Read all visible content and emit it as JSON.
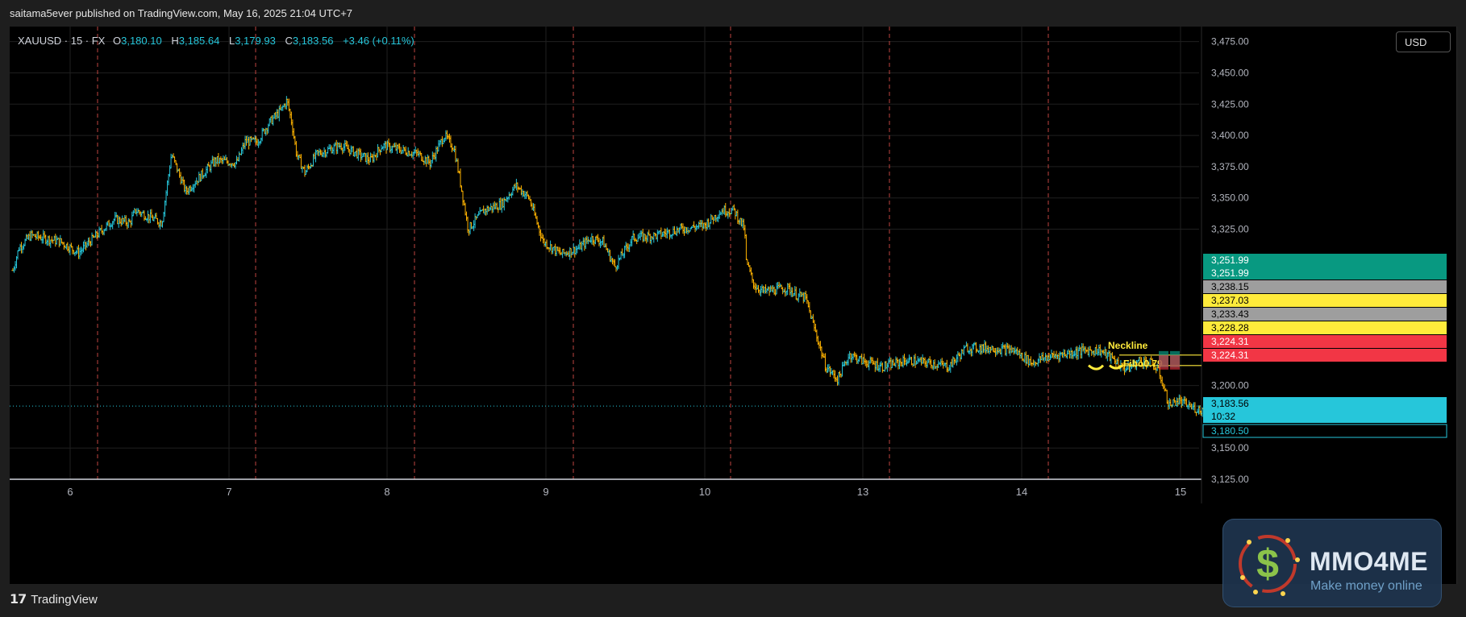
{
  "publish_text": "saitama5ever published on TradingView.com, May 16, 2025 21:04 UTC+7",
  "footer_brand": "TradingView",
  "currency": "USD",
  "legend": {
    "symbol": "XAUUSD · 15 · FX",
    "o_label": "O",
    "o": "3,180.10",
    "h_label": "H",
    "h": "3,185.64",
    "l_label": "L",
    "l": "3,179.93",
    "c_label": "C",
    "c": "3,183.56",
    "change": "+3.46 (+0.11%)"
  },
  "watermark": {
    "title": "MMO4ME",
    "subtitle": "Make money online"
  },
  "colors": {
    "up": "#26c6da",
    "down": "#ffb300",
    "session_line": "#e0524a",
    "annotation": "#ffeb3b",
    "grid": "#1f1f1f"
  },
  "chart_data": {
    "type": "candlestick",
    "symbol": "XAUUSD",
    "interval": "15",
    "ylim": [
      3125,
      3487
    ],
    "y_ticks": [
      "3,475.00",
      "3,450.00",
      "3,425.00",
      "3,400.00",
      "3,375.00",
      "3,350.00",
      "3,325.00",
      "3,200.00",
      "3,150.00",
      "3,125.00"
    ],
    "y_tick_values": [
      3475,
      3450,
      3425,
      3400,
      3375,
      3350,
      3325,
      3200,
      3150,
      3125
    ],
    "x_tick_labels": [
      "6",
      "7",
      "8",
      "9",
      "10",
      "13",
      "14",
      "15"
    ],
    "day_session_dividers": 7,
    "price_path": [
      [
        0,
        3292
      ],
      [
        0.05,
        3310
      ],
      [
        0.15,
        3320
      ],
      [
        0.4,
        3315
      ],
      [
        0.55,
        3306
      ],
      [
        0.7,
        3320
      ],
      [
        0.85,
        3333
      ],
      [
        0.98,
        3330
      ],
      [
        1.03,
        3340
      ],
      [
        1.25,
        3330
      ],
      [
        1.33,
        3385
      ],
      [
        1.45,
        3355
      ],
      [
        1.5,
        3360
      ],
      [
        1.6,
        3370
      ],
      [
        1.7,
        3380
      ],
      [
        1.88,
        3378
      ],
      [
        1.95,
        3395
      ],
      [
        2.05,
        3395
      ],
      [
        2.15,
        3410
      ],
      [
        2.25,
        3420
      ],
      [
        2.3,
        3428
      ],
      [
        2.34,
        3410
      ],
      [
        2.38,
        3385
      ],
      [
        2.45,
        3370
      ],
      [
        2.55,
        3385
      ],
      [
        2.75,
        3392
      ],
      [
        3.0,
        3380
      ],
      [
        3.1,
        3392
      ],
      [
        3.4,
        3385
      ],
      [
        3.5,
        3378
      ],
      [
        3.62,
        3400
      ],
      [
        3.7,
        3390
      ],
      [
        3.75,
        3365
      ],
      [
        3.82,
        3325
      ],
      [
        3.95,
        3340
      ],
      [
        4.1,
        3345
      ],
      [
        4.22,
        3360
      ],
      [
        4.33,
        3350
      ],
      [
        4.45,
        3315
      ],
      [
        4.6,
        3305
      ],
      [
        4.75,
        3310
      ],
      [
        4.85,
        3318
      ],
      [
        4.95,
        3315
      ],
      [
        5.05,
        3295
      ],
      [
        5.2,
        3318
      ],
      [
        5.4,
        3320
      ],
      [
        5.6,
        3325
      ],
      [
        5.8,
        3328
      ],
      [
        5.95,
        3340
      ],
      [
        6.05,
        3340
      ],
      [
        6.14,
        3325
      ],
      [
        6.15,
        3300
      ],
      [
        6.22,
        3280
      ],
      [
        6.3,
        3275
      ],
      [
        6.5,
        3278
      ],
      [
        6.58,
        3272
      ],
      [
        6.65,
        3270
      ],
      [
        6.82,
        3215
      ],
      [
        6.92,
        3205
      ],
      [
        7.02,
        3225
      ],
      [
        7.12,
        3220
      ],
      [
        7.3,
        3215
      ],
      [
        7.5,
        3220
      ],
      [
        7.7,
        3218
      ],
      [
        7.85,
        3215
      ],
      [
        8.0,
        3230
      ],
      [
        8.2,
        3230
      ],
      [
        8.4,
        3228
      ],
      [
        8.55,
        3218
      ],
      [
        8.65,
        3222
      ],
      [
        8.8,
        3225
      ],
      [
        9.0,
        3228
      ],
      [
        9.12,
        3228
      ],
      [
        9.25,
        3220
      ],
      [
        9.3,
        3215
      ],
      [
        9.35,
        3213
      ],
      [
        9.45,
        3220
      ],
      [
        9.55,
        3218
      ],
      [
        9.62,
        3210
      ],
      [
        9.7,
        3184
      ],
      [
        9.77,
        3188
      ],
      [
        9.9,
        3182
      ],
      [
        10.0,
        3180
      ]
    ],
    "price_labels": [
      {
        "text": "3,251.99",
        "value": 3251.99,
        "bg": "#089981",
        "fg": "#ffffff"
      },
      {
        "text": "3,251.99",
        "value": 3251.99,
        "bg": "#089981",
        "fg": "#ffffff"
      },
      {
        "text": "3,238.15",
        "value": 3238.15,
        "bg": "#9e9e9e",
        "fg": "#000000"
      },
      {
        "text": "3,237.03",
        "value": 3237.03,
        "bg": "#ffeb3b",
        "fg": "#000000"
      },
      {
        "text": "3,233.43",
        "value": 3233.43,
        "bg": "#9e9e9e",
        "fg": "#000000"
      },
      {
        "text": "3,228.28",
        "value": 3228.28,
        "bg": "#ffeb3b",
        "fg": "#000000"
      },
      {
        "text": "3,224.31",
        "value": 3224.31,
        "bg": "#f23645",
        "fg": "#ffffff"
      },
      {
        "text": "3,224.31",
        "value": 3224.31,
        "bg": "#f23645",
        "fg": "#ffffff"
      },
      {
        "text": "3,183.56",
        "value": 3183.56,
        "bg": "#26c6da",
        "fg": "#000000"
      },
      {
        "text": "10:32",
        "value": 3183.56,
        "bg": "#26c6da",
        "fg": "#000000",
        "sub": true
      },
      {
        "text": "3,180.50",
        "value": 3180.5,
        "bg": "#000000",
        "fg": "#26c6da",
        "outline": true
      }
    ],
    "annotations": {
      "neckline_label": "Neckline",
      "neckline_value": 3224.31,
      "fibo_label": "Fibo0.79",
      "fibo_value": 3218
    },
    "last_price": 3183.56
  }
}
